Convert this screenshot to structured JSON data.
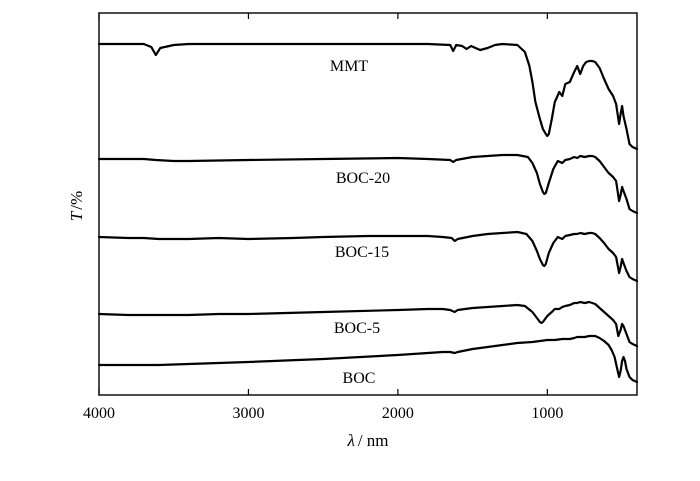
{
  "chart_data": {
    "type": "line",
    "xlabel": {
      "var": "λ",
      "unit": "/ nm"
    },
    "ylabel": {
      "var": "T",
      "unit": "/%"
    },
    "xlim": [
      4000,
      400
    ],
    "x_reversed": true,
    "x_ticks": [
      4000,
      3000,
      2000,
      1000
    ],
    "y_ticks_shown": false,
    "grid": false,
    "series": [
      {
        "name": "MMT",
        "baseline": 0.0,
        "points": [
          [
            4000,
            0
          ],
          [
            3700,
            0
          ],
          [
            3650,
            -3
          ],
          [
            3620,
            -11
          ],
          [
            3590,
            -4
          ],
          [
            3500,
            -1
          ],
          [
            3400,
            0
          ],
          [
            2500,
            0
          ],
          [
            2400,
            0
          ],
          [
            1800,
            0
          ],
          [
            1650,
            -1
          ],
          [
            1630,
            -7
          ],
          [
            1610,
            -1
          ],
          [
            1570,
            -2
          ],
          [
            1540,
            -5
          ],
          [
            1510,
            -2
          ],
          [
            1450,
            -6
          ],
          [
            1400,
            -4
          ],
          [
            1350,
            -1
          ],
          [
            1300,
            0
          ],
          [
            1200,
            -1
          ],
          [
            1150,
            -8
          ],
          [
            1120,
            -22
          ],
          [
            1100,
            -38
          ],
          [
            1080,
            -58
          ],
          [
            1050,
            -75
          ],
          [
            1030,
            -85
          ],
          [
            1010,
            -90
          ],
          [
            1000,
            -92
          ],
          [
            990,
            -90
          ],
          [
            970,
            -75
          ],
          [
            950,
            -58
          ],
          [
            920,
            -48
          ],
          [
            900,
            -52
          ],
          [
            880,
            -40
          ],
          [
            850,
            -38
          ],
          [
            820,
            -28
          ],
          [
            800,
            -22
          ],
          [
            780,
            -30
          ],
          [
            760,
            -22
          ],
          [
            740,
            -18
          ],
          [
            720,
            -17
          ],
          [
            700,
            -17
          ],
          [
            680,
            -18
          ],
          [
            650,
            -24
          ],
          [
            620,
            -35
          ],
          [
            590,
            -45
          ],
          [
            560,
            -52
          ],
          [
            540,
            -60
          ],
          [
            520,
            -80
          ],
          [
            510,
            -70
          ],
          [
            500,
            -62
          ],
          [
            490,
            -72
          ],
          [
            470,
            -85
          ],
          [
            450,
            -100
          ],
          [
            430,
            -103
          ],
          [
            400,
            -105
          ]
        ]
      },
      {
        "name": "BOC-20",
        "baseline": 115.0,
        "points": [
          [
            4000,
            0
          ],
          [
            3700,
            0
          ],
          [
            3620,
            -1
          ],
          [
            3500,
            -2
          ],
          [
            3400,
            -2
          ],
          [
            3000,
            -1
          ],
          [
            2500,
            0
          ],
          [
            2000,
            1
          ],
          [
            1800,
            0
          ],
          [
            1650,
            -1
          ],
          [
            1630,
            -3
          ],
          [
            1610,
            -1
          ],
          [
            1500,
            2
          ],
          [
            1400,
            3
          ],
          [
            1300,
            4
          ],
          [
            1200,
            4
          ],
          [
            1130,
            2
          ],
          [
            1100,
            -4
          ],
          [
            1070,
            -14
          ],
          [
            1050,
            -25
          ],
          [
            1030,
            -33
          ],
          [
            1020,
            -35
          ],
          [
            1010,
            -34
          ],
          [
            990,
            -24
          ],
          [
            960,
            -10
          ],
          [
            930,
            -2
          ],
          [
            900,
            -4
          ],
          [
            880,
            -1
          ],
          [
            850,
            0
          ],
          [
            820,
            2
          ],
          [
            800,
            1
          ],
          [
            780,
            3
          ],
          [
            750,
            2
          ],
          [
            720,
            3
          ],
          [
            700,
            3
          ],
          [
            680,
            2
          ],
          [
            650,
            -2
          ],
          [
            620,
            -8
          ],
          [
            590,
            -14
          ],
          [
            560,
            -18
          ],
          [
            540,
            -22
          ],
          [
            520,
            -42
          ],
          [
            510,
            -36
          ],
          [
            500,
            -28
          ],
          [
            490,
            -32
          ],
          [
            470,
            -40
          ],
          [
            450,
            -50
          ],
          [
            430,
            -52
          ],
          [
            400,
            -54
          ]
        ]
      },
      {
        "name": "BOC-15",
        "baseline": 193.0,
        "points": [
          [
            4000,
            0
          ],
          [
            3800,
            -1
          ],
          [
            3700,
            -1
          ],
          [
            3600,
            -2
          ],
          [
            3400,
            -2
          ],
          [
            3200,
            -1
          ],
          [
            3000,
            -2
          ],
          [
            2700,
            -1
          ],
          [
            2500,
            0
          ],
          [
            2200,
            1
          ],
          [
            2000,
            1
          ],
          [
            1800,
            1
          ],
          [
            1700,
            0
          ],
          [
            1640,
            -1
          ],
          [
            1620,
            -4
          ],
          [
            1600,
            -2
          ],
          [
            1500,
            1
          ],
          [
            1400,
            3
          ],
          [
            1300,
            4
          ],
          [
            1200,
            5
          ],
          [
            1140,
            3
          ],
          [
            1100,
            -4
          ],
          [
            1070,
            -14
          ],
          [
            1050,
            -22
          ],
          [
            1030,
            -28
          ],
          [
            1020,
            -29
          ],
          [
            1010,
            -27
          ],
          [
            990,
            -16
          ],
          [
            960,
            -6
          ],
          [
            930,
            0
          ],
          [
            900,
            -2
          ],
          [
            880,
            1
          ],
          [
            850,
            2
          ],
          [
            820,
            3
          ],
          [
            800,
            3
          ],
          [
            780,
            4
          ],
          [
            750,
            3
          ],
          [
            720,
            4
          ],
          [
            700,
            4
          ],
          [
            680,
            3
          ],
          [
            650,
            -1
          ],
          [
            620,
            -6
          ],
          [
            590,
            -12
          ],
          [
            560,
            -16
          ],
          [
            540,
            -20
          ],
          [
            520,
            -36
          ],
          [
            510,
            -30
          ],
          [
            500,
            -22
          ],
          [
            490,
            -26
          ],
          [
            470,
            -34
          ],
          [
            450,
            -40
          ],
          [
            430,
            -42
          ],
          [
            400,
            -44
          ]
        ]
      },
      {
        "name": "BOC-5",
        "baseline": 270.0,
        "points": [
          [
            4000,
            0
          ],
          [
            3800,
            -1
          ],
          [
            3600,
            -1
          ],
          [
            3400,
            -1
          ],
          [
            3200,
            0
          ],
          [
            3000,
            0
          ],
          [
            2500,
            2
          ],
          [
            2000,
            4
          ],
          [
            1800,
            5
          ],
          [
            1700,
            5
          ],
          [
            1650,
            4
          ],
          [
            1620,
            2
          ],
          [
            1600,
            4
          ],
          [
            1500,
            6
          ],
          [
            1400,
            7
          ],
          [
            1300,
            8
          ],
          [
            1200,
            9
          ],
          [
            1150,
            8
          ],
          [
            1100,
            2
          ],
          [
            1070,
            -4
          ],
          [
            1050,
            -8
          ],
          [
            1040,
            -9
          ],
          [
            1030,
            -8
          ],
          [
            1000,
            -2
          ],
          [
            970,
            2
          ],
          [
            950,
            5
          ],
          [
            920,
            5
          ],
          [
            900,
            7
          ],
          [
            880,
            8
          ],
          [
            850,
            9
          ],
          [
            820,
            11
          ],
          [
            800,
            11
          ],
          [
            780,
            12
          ],
          [
            750,
            11
          ],
          [
            720,
            12
          ],
          [
            700,
            11
          ],
          [
            680,
            10
          ],
          [
            650,
            6
          ],
          [
            620,
            2
          ],
          [
            590,
            -2
          ],
          [
            560,
            -6
          ],
          [
            540,
            -10
          ],
          [
            525,
            -22
          ],
          [
            510,
            -16
          ],
          [
            500,
            -10
          ],
          [
            490,
            -12
          ],
          [
            470,
            -20
          ],
          [
            450,
            -28
          ],
          [
            430,
            -30
          ],
          [
            400,
            -32
          ]
        ]
      },
      {
        "name": "BOC",
        "baseline": 321.0,
        "points": [
          [
            4000,
            0
          ],
          [
            3800,
            0
          ],
          [
            3600,
            0
          ],
          [
            3400,
            1
          ],
          [
            3200,
            2
          ],
          [
            3000,
            3
          ],
          [
            2500,
            6
          ],
          [
            2000,
            10
          ],
          [
            1800,
            12
          ],
          [
            1700,
            13
          ],
          [
            1650,
            13
          ],
          [
            1620,
            12
          ],
          [
            1600,
            13
          ],
          [
            1500,
            16
          ],
          [
            1400,
            18
          ],
          [
            1300,
            20
          ],
          [
            1200,
            22
          ],
          [
            1100,
            23
          ],
          [
            1050,
            24
          ],
          [
            1000,
            25
          ],
          [
            950,
            25
          ],
          [
            900,
            26
          ],
          [
            850,
            26
          ],
          [
            820,
            27
          ],
          [
            800,
            28
          ],
          [
            780,
            28
          ],
          [
            750,
            28
          ],
          [
            720,
            29
          ],
          [
            700,
            29
          ],
          [
            680,
            29
          ],
          [
            650,
            27
          ],
          [
            620,
            24
          ],
          [
            590,
            20
          ],
          [
            570,
            15
          ],
          [
            550,
            8
          ],
          [
            535,
            -2
          ],
          [
            520,
            -12
          ],
          [
            510,
            -6
          ],
          [
            500,
            4
          ],
          [
            490,
            8
          ],
          [
            480,
            4
          ],
          [
            470,
            -4
          ],
          [
            450,
            -12
          ],
          [
            430,
            -15
          ],
          [
            400,
            -17
          ]
        ]
      }
    ]
  },
  "series_labels": [
    {
      "text": "MMT"
    },
    {
      "text": "BOC-20"
    },
    {
      "text": "BOC-15"
    },
    {
      "text": "BOC-5"
    },
    {
      "text": "BOC"
    }
  ]
}
